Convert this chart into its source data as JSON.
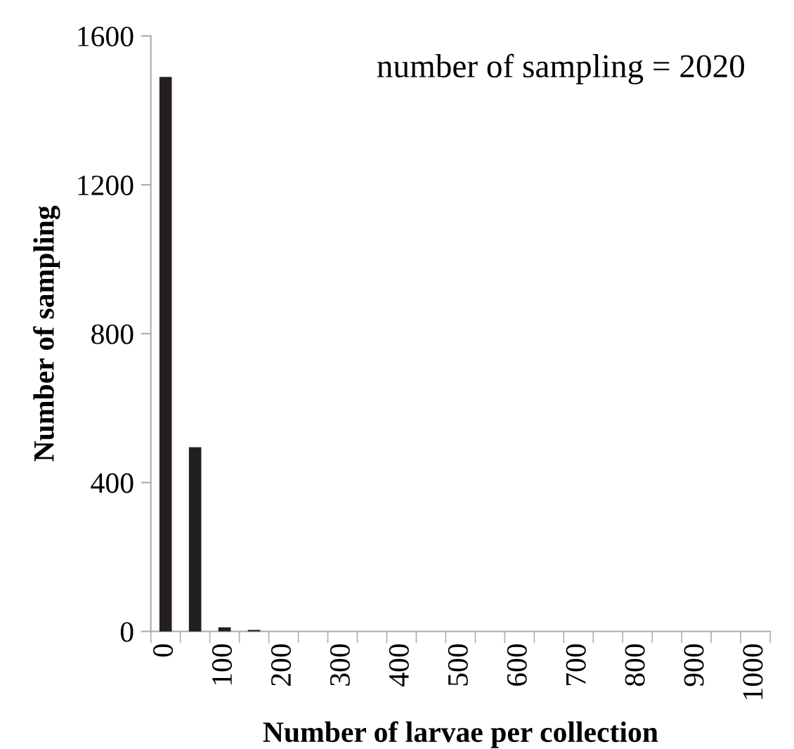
{
  "chart_data": {
    "type": "bar",
    "xlabel": "Number of larvae per collection",
    "ylabel": "Number of sampling",
    "annotations": [
      "number of sampling = 2020"
    ],
    "categories": [
      "0",
      null,
      "100",
      null,
      "200",
      null,
      "300",
      null,
      "400",
      null,
      "500",
      null,
      "600",
      null,
      "700",
      null,
      "800",
      null,
      "900",
      null,
      "1000"
    ],
    "values": [
      1490,
      495,
      11,
      4,
      0,
      0,
      0,
      0,
      0,
      0,
      0,
      0,
      0,
      0,
      0,
      0,
      0,
      0,
      0,
      0,
      0
    ],
    "color": "#231f20",
    "ylim": [
      0,
      1600
    ],
    "yticks": [
      0,
      400,
      800,
      1200,
      1600
    ],
    "grid": false
  }
}
